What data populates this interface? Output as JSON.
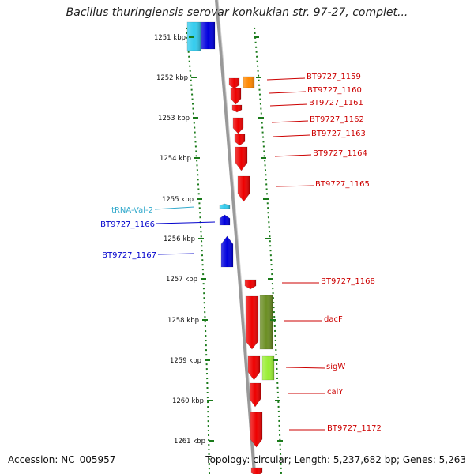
{
  "header": {
    "title": "Bacillus thuringiensis serovar konkukian str. 97-27, complet..."
  },
  "footer": {
    "accession_label": "Accession:",
    "accession": "NC_005957",
    "topology_label": "Topology:",
    "topology": "circular",
    "length_label": "Length:",
    "length": "5,237,682 bp",
    "genes_label": "Genes:",
    "genes": "5,263"
  },
  "colors": {
    "backbone": "#999999",
    "tick": "#1a7a1a",
    "gene_red": "#ee0000",
    "gene_blue": "#0000dd",
    "gene_cyan": "#33ccee",
    "gene_orange": "#ff8800",
    "gene_olive": "#6b8e23",
    "gene_lime": "#99ee33",
    "label_red": "#cc0000",
    "label_blue": "#0000cc",
    "label_cyan": "#33aacc"
  },
  "scale_labels": [
    "1251 kbp",
    "1252 kbp",
    "1253 kbp",
    "1254 kbp",
    "1255 kbp",
    "1256 kbp",
    "1257 kbp",
    "1258 kbp",
    "1259 kbp",
    "1260 kbp",
    "1261 kbp"
  ],
  "feature_labels": {
    "right": [
      "BT9727_1159",
      "BT9727_1160",
      "BT9727_1161",
      "BT9727_1162",
      "BT9727_1163",
      "BT9727_1164",
      "BT9727_1165",
      "BT9727_1168",
      "dacF",
      "sigW",
      "calY",
      "BT9727_1172"
    ],
    "left": [
      "tRNA-Val-2",
      "BT9727_1166",
      "BT9727_1167"
    ]
  }
}
